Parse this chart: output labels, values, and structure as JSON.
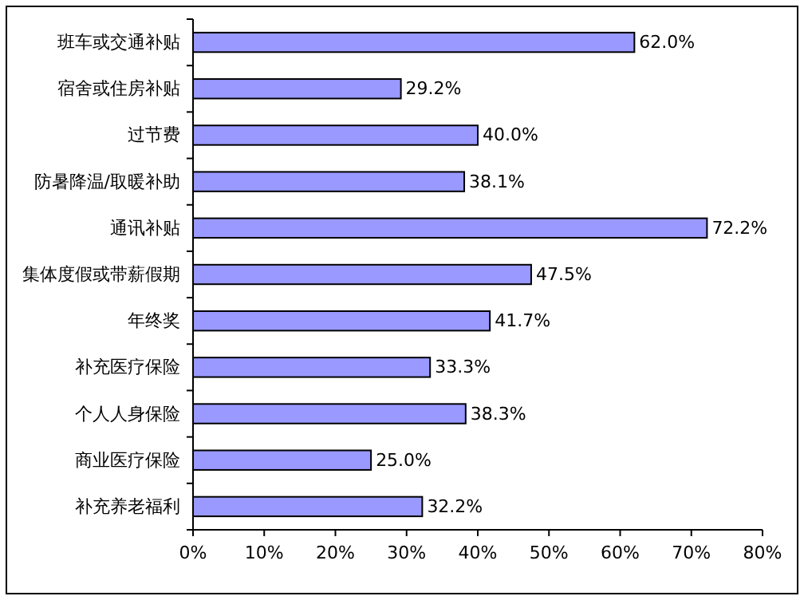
{
  "chart_data": {
    "type": "bar",
    "orientation": "horizontal",
    "categories": [
      "班车或交通补贴",
      "宿舍或住房补贴",
      "过节费",
      "防暑降温/取暖补助",
      "通讯补贴",
      "集体度假或带薪假期",
      "年终奖",
      "补充医疗保险",
      "个人人身保险",
      "商业医疗保险",
      "补充养老福利"
    ],
    "values": [
      62.0,
      29.2,
      40.0,
      38.1,
      72.2,
      47.5,
      41.7,
      33.3,
      38.3,
      25.0,
      32.2
    ],
    "value_labels": [
      "62.0%",
      "29.2%",
      "40.0%",
      "38.1%",
      "72.2%",
      "47.5%",
      "41.7%",
      "33.3%",
      "38.3%",
      "25.0%",
      "32.2%"
    ],
    "color": "#9999ff",
    "xlim": [
      0,
      80
    ],
    "xticks": [
      {
        "value": 0,
        "label": "0%"
      },
      {
        "value": 10,
        "label": "10%"
      },
      {
        "value": 20,
        "label": "20%"
      },
      {
        "value": 30,
        "label": "30%"
      },
      {
        "value": 40,
        "label": "40%"
      },
      {
        "value": 50,
        "label": "50%"
      },
      {
        "value": 60,
        "label": "60%"
      },
      {
        "value": 70,
        "label": "70%"
      },
      {
        "value": 80,
        "label": "80%"
      }
    ],
    "grid": false
  }
}
